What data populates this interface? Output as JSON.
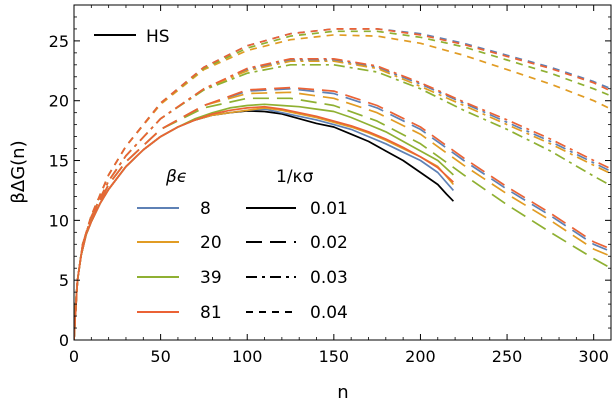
{
  "chart_data": {
    "type": "line",
    "xlabel": "n",
    "ylabel": "βΔG(n)",
    "xlim": [
      0,
      310
    ],
    "ylim": [
      0,
      28
    ],
    "xticks": [
      "0",
      "50",
      "100",
      "150",
      "200",
      "250",
      "300"
    ],
    "yticks": [
      "0",
      "5",
      "10",
      "15",
      "20",
      "25"
    ],
    "grid": false,
    "legend_hs": "HS",
    "legend_beps_title": "βϵ",
    "legend_kappa_title": "1/κσ",
    "beta_eps": [
      {
        "label": "8",
        "color": "#5e81b5"
      },
      {
        "label": "20",
        "color": "#e19c24"
      },
      {
        "label": "39",
        "color": "#8fb032"
      },
      {
        "label": "81",
        "color": "#eb6235"
      }
    ],
    "kappa_styles": [
      {
        "label": "0.01",
        "dash": "solid"
      },
      {
        "label": "0.02",
        "dash": "long-dash"
      },
      {
        "label": "0.03",
        "dash": "dash-dot"
      },
      {
        "label": "0.04",
        "dash": "short-dash"
      }
    ],
    "series": [
      {
        "name": "HS",
        "color": "#000000",
        "dash": "solid",
        "x": [
          0,
          1,
          2,
          4,
          7,
          10,
          15,
          20,
          30,
          40,
          50,
          60,
          70,
          80,
          90,
          100,
          110,
          120,
          130,
          140,
          150,
          160,
          170,
          180,
          190,
          200,
          210,
          215,
          219
        ],
        "y": [
          0,
          3.0,
          5.0,
          7.0,
          8.8,
          9.9,
          11.4,
          12.6,
          14.5,
          15.9,
          17.0,
          17.8,
          18.4,
          18.8,
          19.0,
          19.15,
          19.1,
          18.9,
          18.5,
          18.1,
          17.8,
          17.2,
          16.6,
          15.8,
          15.0,
          14.0,
          13.0,
          12.2,
          11.6
        ]
      },
      {
        "color": "#5e81b5",
        "dash": "solid",
        "x": [
          0,
          1,
          2,
          4,
          7,
          10,
          15,
          20,
          30,
          40,
          50,
          60,
          70,
          80,
          90,
          100,
          110,
          120,
          130,
          140,
          150,
          160,
          170,
          180,
          190,
          200,
          210,
          219
        ],
        "y": [
          0,
          3.0,
          5.0,
          7.0,
          8.8,
          9.9,
          11.4,
          12.6,
          14.5,
          15.9,
          17.0,
          17.8,
          18.4,
          18.8,
          19.0,
          19.2,
          19.3,
          19.0,
          18.7,
          18.4,
          18.0,
          17.6,
          17.0,
          16.4,
          15.7,
          15.0,
          14.0,
          12.5
        ]
      },
      {
        "color": "#e19c24",
        "dash": "solid",
        "x": [
          0,
          1,
          2,
          4,
          7,
          10,
          15,
          20,
          30,
          40,
          50,
          60,
          70,
          80,
          90,
          100,
          110,
          120,
          130,
          140,
          150,
          160,
          170,
          180,
          190,
          200,
          210,
          219
        ],
        "y": [
          0,
          3.0,
          5.0,
          7.0,
          8.8,
          9.9,
          11.4,
          12.6,
          14.5,
          15.9,
          17.0,
          17.8,
          18.4,
          18.8,
          19.0,
          19.2,
          19.4,
          19.2,
          18.9,
          18.6,
          18.2,
          17.8,
          17.3,
          16.7,
          16.0,
          15.3,
          14.5,
          13.0
        ]
      },
      {
        "color": "#8fb032",
        "dash": "solid",
        "x": [
          0,
          1,
          2,
          4,
          7,
          10,
          15,
          20,
          30,
          40,
          50,
          60,
          70,
          80,
          90,
          100,
          110,
          120,
          130,
          140,
          150,
          160,
          170,
          180,
          190,
          200,
          210,
          219
        ],
        "y": [
          0,
          3.0,
          5.0,
          7.0,
          8.8,
          9.9,
          11.4,
          12.6,
          14.5,
          15.9,
          17.0,
          17.8,
          18.5,
          19.0,
          19.4,
          19.6,
          19.7,
          19.6,
          19.5,
          19.3,
          19.1,
          18.6,
          18.0,
          17.4,
          16.6,
          15.8,
          15.0,
          13.8
        ]
      },
      {
        "color": "#eb6235",
        "dash": "solid",
        "x": [
          0,
          1,
          2,
          4,
          7,
          10,
          15,
          20,
          30,
          40,
          50,
          60,
          70,
          80,
          90,
          100,
          110,
          120,
          130,
          140,
          150,
          160,
          170,
          180,
          190,
          200,
          210,
          219
        ],
        "y": [
          0,
          3.0,
          5.0,
          7.0,
          8.8,
          9.9,
          11.4,
          12.6,
          14.5,
          15.9,
          17.0,
          17.8,
          18.4,
          18.9,
          19.2,
          19.4,
          19.5,
          19.3,
          19.0,
          18.7,
          18.3,
          17.9,
          17.4,
          16.8,
          16.1,
          15.3,
          14.4,
          13.2
        ]
      },
      {
        "color": "#5e81b5",
        "dash": "long-dash",
        "x": [
          0,
          2,
          5,
          10,
          20,
          30,
          50,
          75,
          100,
          125,
          150,
          175,
          200,
          225,
          250,
          275,
          300,
          310
        ],
        "y": [
          0,
          5.0,
          8.0,
          10.2,
          13.0,
          14.9,
          17.6,
          19.6,
          20.8,
          21.0,
          20.6,
          19.4,
          17.6,
          15.0,
          12.6,
          10.4,
          8.0,
          7.4
        ]
      },
      {
        "color": "#e19c24",
        "dash": "long-dash",
        "x": [
          0,
          2,
          5,
          10,
          20,
          30,
          50,
          75,
          100,
          125,
          150,
          175,
          200,
          225,
          250,
          275,
          300,
          310
        ],
        "y": [
          0,
          5.0,
          8.0,
          10.2,
          13.0,
          14.9,
          17.6,
          19.6,
          20.6,
          20.7,
          20.2,
          19.0,
          17.2,
          14.6,
          12.2,
          10.0,
          7.6,
          7.0
        ]
      },
      {
        "color": "#8fb032",
        "dash": "long-dash",
        "x": [
          0,
          2,
          5,
          10,
          20,
          30,
          50,
          75,
          100,
          125,
          150,
          175,
          200,
          225,
          250,
          275,
          300,
          310
        ],
        "y": [
          0,
          5.0,
          8.0,
          10.2,
          13.0,
          14.9,
          17.6,
          19.4,
          20.2,
          20.2,
          19.6,
          18.3,
          16.4,
          13.8,
          11.3,
          9.0,
          6.8,
          6.0
        ]
      },
      {
        "color": "#eb6235",
        "dash": "long-dash",
        "x": [
          0,
          2,
          5,
          10,
          20,
          30,
          50,
          75,
          100,
          125,
          150,
          175,
          200,
          225,
          250,
          275,
          300,
          310
        ],
        "y": [
          0,
          5.0,
          8.0,
          10.2,
          13.0,
          14.9,
          17.6,
          19.6,
          20.9,
          21.1,
          20.8,
          19.6,
          17.8,
          15.2,
          12.8,
          10.6,
          8.2,
          7.6
        ]
      },
      {
        "color": "#5e81b5",
        "dash": "dash-dot",
        "x": [
          0,
          2,
          5,
          10,
          20,
          30,
          50,
          75,
          100,
          125,
          150,
          175,
          200,
          225,
          250,
          275,
          300,
          310
        ],
        "y": [
          0,
          5.0,
          8.0,
          10.3,
          13.3,
          15.4,
          18.5,
          21.0,
          22.6,
          23.4,
          23.4,
          22.8,
          21.4,
          19.8,
          18.2,
          16.6,
          14.8,
          14.1
        ]
      },
      {
        "color": "#e19c24",
        "dash": "dash-dot",
        "x": [
          0,
          2,
          5,
          10,
          20,
          30,
          50,
          75,
          100,
          125,
          150,
          175,
          200,
          225,
          250,
          275,
          300,
          310
        ],
        "y": [
          0,
          5.0,
          8.0,
          10.3,
          13.3,
          15.4,
          18.5,
          21.0,
          22.5,
          23.3,
          23.3,
          22.7,
          21.2,
          19.6,
          18.0,
          16.4,
          14.6,
          13.9
        ]
      },
      {
        "color": "#8fb032",
        "dash": "dash-dot",
        "x": [
          0,
          2,
          5,
          10,
          20,
          30,
          50,
          75,
          100,
          125,
          150,
          175,
          200,
          225,
          250,
          275,
          300,
          310
        ],
        "y": [
          0,
          5.0,
          8.0,
          10.3,
          13.3,
          15.4,
          18.5,
          20.9,
          22.3,
          23.0,
          23.0,
          22.4,
          21.0,
          19.2,
          17.6,
          15.8,
          13.7,
          12.9
        ]
      },
      {
        "color": "#eb6235",
        "dash": "dash-dot",
        "x": [
          0,
          2,
          5,
          10,
          20,
          30,
          50,
          75,
          100,
          125,
          150,
          175,
          200,
          225,
          250,
          275,
          300,
          310
        ],
        "y": [
          0,
          5.0,
          8.0,
          10.3,
          13.3,
          15.4,
          18.5,
          21.0,
          22.7,
          23.5,
          23.5,
          22.9,
          21.5,
          19.9,
          18.4,
          16.8,
          15.0,
          14.3
        ]
      },
      {
        "color": "#5e81b5",
        "dash": "short-dash",
        "x": [
          0,
          2,
          5,
          10,
          20,
          30,
          50,
          75,
          100,
          125,
          150,
          175,
          200,
          225,
          250,
          275,
          300,
          310
        ],
        "y": [
          0,
          5.0,
          8.0,
          10.4,
          13.8,
          16.2,
          19.8,
          22.8,
          24.6,
          25.6,
          26.0,
          26.0,
          25.6,
          24.8,
          23.8,
          22.8,
          21.6,
          21.0
        ]
      },
      {
        "color": "#e19c24",
        "dash": "short-dash",
        "x": [
          0,
          2,
          5,
          10,
          20,
          30,
          50,
          75,
          100,
          125,
          150,
          175,
          200,
          225,
          250,
          275,
          300,
          310
        ],
        "y": [
          0,
          5.0,
          8.0,
          10.4,
          13.8,
          16.2,
          19.7,
          22.6,
          24.2,
          25.1,
          25.5,
          25.4,
          24.8,
          23.8,
          22.6,
          21.4,
          20.0,
          19.3
        ]
      },
      {
        "color": "#8fb032",
        "dash": "short-dash",
        "x": [
          0,
          2,
          5,
          10,
          20,
          30,
          50,
          75,
          100,
          125,
          150,
          175,
          200,
          225,
          250,
          275,
          300,
          310
        ],
        "y": [
          0,
          5.0,
          8.0,
          10.4,
          13.8,
          16.2,
          19.8,
          22.7,
          24.4,
          25.4,
          25.8,
          25.8,
          25.3,
          24.5,
          23.4,
          22.3,
          21.0,
          20.4
        ]
      },
      {
        "color": "#eb6235",
        "dash": "short-dash",
        "x": [
          0,
          2,
          5,
          10,
          20,
          30,
          50,
          75,
          100,
          125,
          150,
          175,
          200,
          225,
          250,
          275,
          300,
          310
        ],
        "y": [
          0,
          5.0,
          8.0,
          10.4,
          13.8,
          16.2,
          19.8,
          22.8,
          24.6,
          25.6,
          26.0,
          26.0,
          25.5,
          24.7,
          23.7,
          22.7,
          21.5,
          20.8
        ]
      }
    ]
  }
}
